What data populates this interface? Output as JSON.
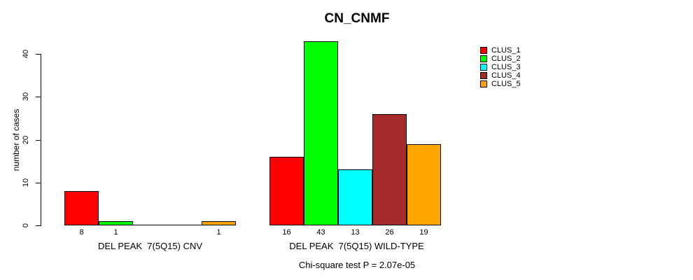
{
  "title": "CN_CNMF",
  "note": "Chi-square test P = 2.07e-05",
  "chart_data": {
    "type": "bar",
    "title": "CN_CNMF",
    "xlabel": "",
    "ylabel": "number of cases",
    "ylim": [
      0,
      40
    ],
    "yticks": [
      0,
      10,
      20,
      30,
      40
    ],
    "grid": false,
    "background": "#FFFFFF",
    "axis_color": "#000000",
    "legend_position": "top-right",
    "categories": [
      "DEL PEAK  7(5Q15) CNV",
      "DEL PEAK  7(5Q15) WILD-TYPE"
    ],
    "series": [
      {
        "name": "CLUS_1",
        "color": "#FF0000",
        "values": [
          8,
          16
        ]
      },
      {
        "name": "CLUS_2",
        "color": "#00FF00",
        "values": [
          1,
          43
        ]
      },
      {
        "name": "CLUS_3",
        "color": "#00FFFF",
        "values": [
          0,
          13
        ]
      },
      {
        "name": "CLUS_4",
        "color": "#A52A2A",
        "values": [
          0,
          26
        ]
      },
      {
        "name": "CLUS_5",
        "color": "#FFA500",
        "values": [
          1,
          19
        ]
      }
    ],
    "bar_value_labels": {
      "show": true,
      "hide_zero": true
    },
    "note": "Chi-square test P = 2.07e-05"
  }
}
